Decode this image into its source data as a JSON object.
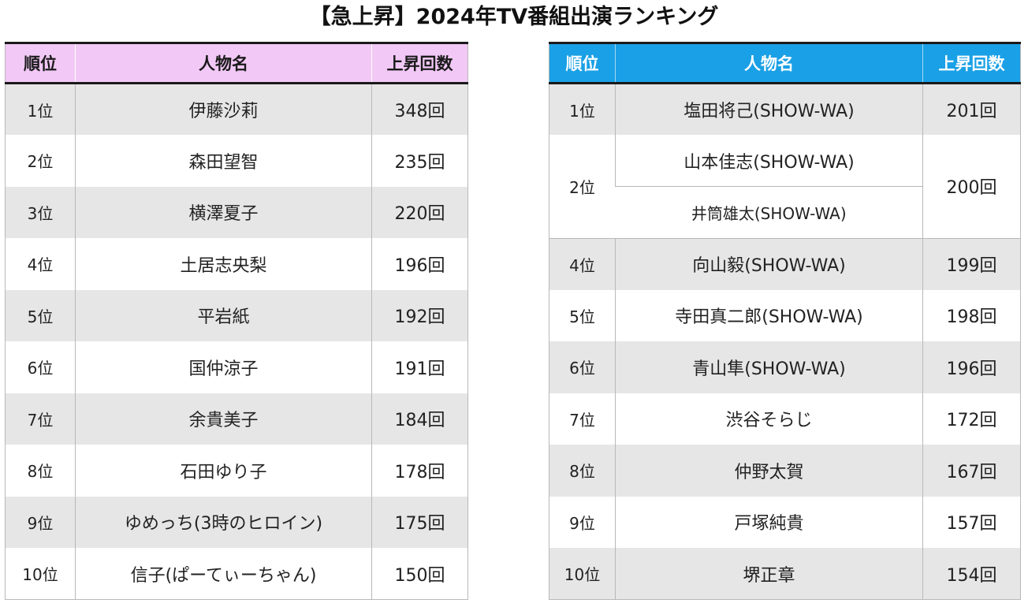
{
  "title": "【急上昇】2024年TV番組出演ランキング",
  "left_table": {
    "headers": [
      "順位",
      "人物名",
      "上昇回数"
    ],
    "header_color": "#f2c8f6",
    "rows": [
      {
        "rank": "1位",
        "name": "伊藤沙莉",
        "count": "348回"
      },
      {
        "rank": "2位",
        "name": "森田望智",
        "count": "235回"
      },
      {
        "rank": "3位",
        "name": "横澤夏子",
        "count": "220回"
      },
      {
        "rank": "4位",
        "name": "土居志央梨",
        "count": "196回"
      },
      {
        "rank": "5位",
        "name": "平岩紙",
        "count": "192回"
      },
      {
        "rank": "6位",
        "name": "国仲涼子",
        "count": "191回"
      },
      {
        "rank": "7位",
        "name": "余貴美子",
        "count": "184回"
      },
      {
        "rank": "8位",
        "name": "石田ゆり子",
        "count": "178回"
      },
      {
        "rank": "9位",
        "name": "ゆめっち(3時のヒロイン)",
        "count": "175回"
      },
      {
        "rank": "10位",
        "name": "信子(ぱーてぃーちゃん)",
        "count": "150回"
      }
    ]
  },
  "right_table": {
    "headers": [
      "順位",
      "人物名",
      "上昇回数"
    ],
    "header_color": "#1aa0e6",
    "rows": [
      {
        "rank": "1位",
        "names": [
          "塩田将己(SHOW-WA)"
        ],
        "count": "201回"
      },
      {
        "rank": "2位",
        "names": [
          "山本佳志(SHOW-WA)",
          "井筒雄太(SHOW-WA)"
        ],
        "count": "200回"
      },
      {
        "rank": "4位",
        "names": [
          "向山毅(SHOW-WA)"
        ],
        "count": "199回"
      },
      {
        "rank": "5位",
        "names": [
          "寺田真二郎(SHOW-WA)"
        ],
        "count": "198回"
      },
      {
        "rank": "6位",
        "names": [
          "青山隼(SHOW-WA)"
        ],
        "count": "196回"
      },
      {
        "rank": "7位",
        "names": [
          "渋谷そらじ"
        ],
        "count": "172回"
      },
      {
        "rank": "8位",
        "names": [
          "仲野太賀"
        ],
        "count": "167回"
      },
      {
        "rank": "9位",
        "names": [
          "戸塚純貴"
        ],
        "count": "157回"
      },
      {
        "rank": "10位",
        "names": [
          "堺正章"
        ],
        "count": "154回"
      }
    ]
  }
}
